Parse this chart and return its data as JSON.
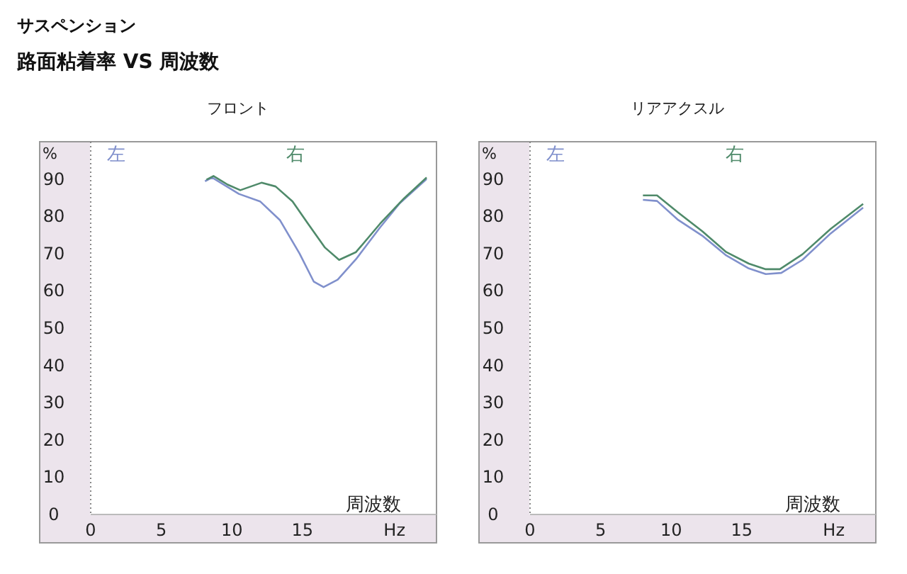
{
  "chart_data": [
    {
      "type": "line",
      "title": "フロント",
      "annotations": [
        "サスペンション",
        "路面粘着率 VS 周波数",
        "Hz"
      ],
      "xlabel": "周波数",
      "ylabel": "%",
      "xlim": [
        0,
        24.5
      ],
      "ylim": [
        0,
        100
      ],
      "xticks": [
        0,
        5,
        10,
        15
      ],
      "yticks": [
        0,
        10,
        20,
        30,
        40,
        50,
        60,
        70,
        80,
        90
      ],
      "grid": false,
      "legend": "top",
      "series": [
        {
          "name": "左",
          "color": "#8090cc",
          "x": [
            8.1,
            8.6,
            10.5,
            12,
            13.4,
            14.8,
            15.8,
            16.5,
            17.5,
            18.8,
            20.5,
            21.9,
            23.8
          ],
          "values": [
            89.4,
            90.4,
            86,
            84,
            79,
            70,
            62.5,
            61,
            63,
            68.5,
            77,
            83.5,
            90
          ]
        },
        {
          "name": "右",
          "color": "#4f8a6a",
          "x": [
            8.2,
            8.7,
            9.7,
            10.6,
            12.1,
            13.1,
            14.3,
            15.4,
            16.6,
            17.6,
            18.8,
            20.5,
            22.2,
            23.8
          ],
          "values": [
            89.8,
            90.8,
            88.5,
            87,
            89,
            88,
            84,
            78,
            71.6,
            68.3,
            70.4,
            78,
            84.8,
            90.4
          ]
        }
      ]
    },
    {
      "type": "line",
      "title": "リアアクスル",
      "annotations": [
        "Hz"
      ],
      "xlabel": "周波数",
      "ylabel": "%",
      "xlim": [
        0,
        24.5
      ],
      "ylim": [
        0,
        100
      ],
      "xticks": [
        0,
        5,
        10,
        15
      ],
      "yticks": [
        0,
        10,
        20,
        30,
        40,
        50,
        60,
        70,
        80,
        90
      ],
      "grid": false,
      "legend": "top",
      "series": [
        {
          "name": "左",
          "color": "#8090cc",
          "x": [
            8.0,
            9,
            10.5,
            12.2,
            13.9,
            15.5,
            16.7,
            17.8,
            19.3,
            21.3,
            23.6
          ],
          "values": [
            84.4,
            84.1,
            79,
            74.8,
            69.5,
            66,
            64.5,
            64.8,
            68.3,
            75.4,
            82.3
          ]
        },
        {
          "name": "右",
          "color": "#4f8a6a",
          "x": [
            8.0,
            9,
            10.5,
            12.2,
            13.9,
            15.5,
            16.7,
            17.7,
            19.3,
            21.3,
            23.6
          ],
          "values": [
            85.6,
            85.6,
            81,
            76,
            70.4,
            67.3,
            65.8,
            65.8,
            69.8,
            76.6,
            83.3
          ]
        }
      ]
    }
  ]
}
